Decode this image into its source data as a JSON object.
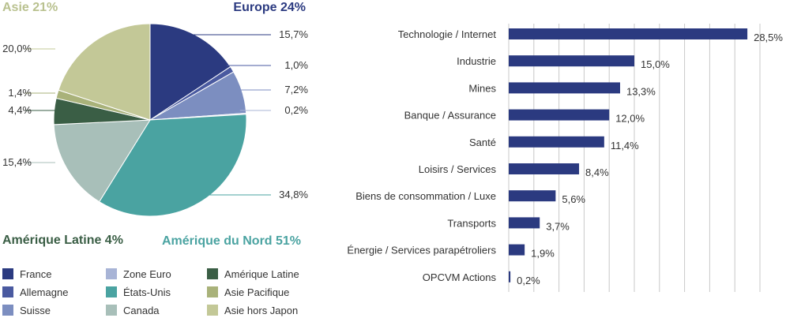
{
  "chart_data": [
    {
      "type": "pie",
      "region_labels": [
        {
          "text": "Asie 21%",
          "color": "#b9c18f"
        },
        {
          "text": "Europe 24%",
          "color": "#2b3a80"
        },
        {
          "text": "Amérique Latine 4%",
          "color": "#3a5e45"
        },
        {
          "text": "Amérique du Nord 51%",
          "color": "#4aa3a1"
        }
      ],
      "slices": [
        {
          "name": "France",
          "value": 15.7,
          "label": "15,7%",
          "color": "#2b3a80"
        },
        {
          "name": "Allemagne",
          "value": 1.0,
          "label": "1,0%",
          "color": "#4a5aa0"
        },
        {
          "name": "Suisse",
          "value": 7.2,
          "label": "7,2%",
          "color": "#7c8ec0"
        },
        {
          "name": "Zone Euro",
          "value": 0.2,
          "label": "0,2%",
          "color": "#a8b4d6"
        },
        {
          "name": "États-Unis",
          "value": 34.8,
          "label": "34,8%",
          "color": "#4aa3a1"
        },
        {
          "name": "Canada",
          "value": 15.4,
          "label": "15,4%",
          "color": "#a8bfb9"
        },
        {
          "name": "Amérique Latine",
          "value": 4.4,
          "label": "4,4%",
          "color": "#3a5e45"
        },
        {
          "name": "Asie Pacifique",
          "value": 1.4,
          "label": "1,4%",
          "color": "#a9b27a"
        },
        {
          "name": "Asie hors Japon",
          "value": 20.0,
          "label": "20,0%",
          "color": "#c3c897"
        }
      ],
      "legend": [
        "France",
        "Allemagne",
        "Suisse",
        "Zone Euro",
        "États-Unis",
        "Canada",
        "Amérique Latine",
        "Asie Pacifique",
        "Asie hors Japon"
      ]
    },
    {
      "type": "bar",
      "orientation": "horizontal",
      "bar_color": "#2b3a80",
      "xlim": [
        0,
        30
      ],
      "grid": true,
      "categories": [
        "Technologie / Internet",
        "Industrie",
        "Mines",
        "Banque / Assurance",
        "Santé",
        "Loisirs / Services",
        "Biens de consommation / Luxe",
        "Transports",
        "Énergie / Services parapétroliers",
        "OPCVM Actions"
      ],
      "values": [
        28.5,
        15.0,
        13.3,
        12.0,
        11.4,
        8.4,
        5.6,
        3.7,
        1.9,
        0.2
      ],
      "value_labels": [
        "28,5%",
        "15,0%",
        "13,3%",
        "12,0%",
        "11,4%",
        "8,4%",
        "5,6%",
        "3,7%",
        "1,9%",
        "0,2%"
      ]
    }
  ]
}
